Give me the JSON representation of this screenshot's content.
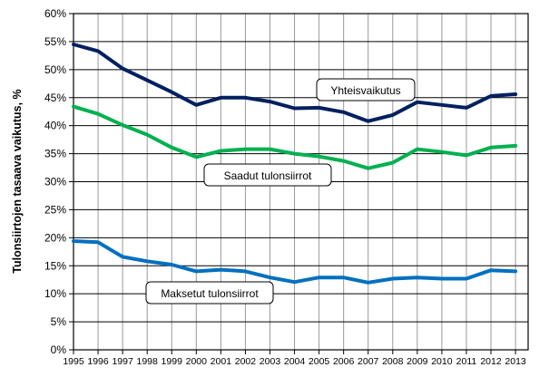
{
  "chart_data": {
    "type": "line",
    "title": "",
    "xlabel": "",
    "ylabel": "Tulonsiirtojen tasaava vaikutus, %",
    "ylim": [
      0,
      60
    ],
    "yticks": [
      "0%",
      "5%",
      "10%",
      "15%",
      "20%",
      "25%",
      "30%",
      "35%",
      "40%",
      "45%",
      "50%",
      "55%",
      "60%"
    ],
    "grid": true,
    "legend_position": "inline callouts",
    "x": [
      "1995",
      "1996",
      "1997",
      "1998",
      "1999",
      "2000",
      "2001",
      "2002",
      "2003",
      "2004",
      "2005",
      "2006",
      "2007",
      "2008",
      "2009",
      "2010",
      "2011",
      "2012",
      "2013"
    ],
    "series": [
      {
        "name": "Yhteisvaikutus",
        "color": "#002060",
        "values": [
          54.5,
          53.3,
          50.2,
          48.1,
          46.0,
          43.7,
          45.0,
          45.0,
          44.3,
          43.1,
          43.2,
          42.4,
          40.8,
          41.9,
          44.2,
          43.7,
          43.2,
          45.3,
          45.6
        ]
      },
      {
        "name": "Saadut tulonsiirrot",
        "color": "#00B050",
        "values": [
          43.4,
          42.1,
          40.1,
          38.4,
          36.1,
          34.4,
          35.5,
          35.8,
          35.8,
          35.0,
          34.5,
          33.7,
          32.4,
          33.4,
          35.8,
          35.3,
          34.7,
          36.1,
          36.4
        ]
      },
      {
        "name": "Maksetut tulonsiirrot",
        "color": "#0070C0",
        "values": [
          19.4,
          19.2,
          16.6,
          15.8,
          15.2,
          14.0,
          14.3,
          14.0,
          12.9,
          12.1,
          12.9,
          12.9,
          12.0,
          12.7,
          12.9,
          12.7,
          12.7,
          14.2,
          14.0
        ]
      }
    ],
    "annotations": [
      {
        "text": "Yhteisvaikutus",
        "series": 0
      },
      {
        "text": "Saadut tulonsiirrot",
        "series": 1
      },
      {
        "text": "Maksetut tulonsiirrot",
        "series": 2
      }
    ]
  }
}
